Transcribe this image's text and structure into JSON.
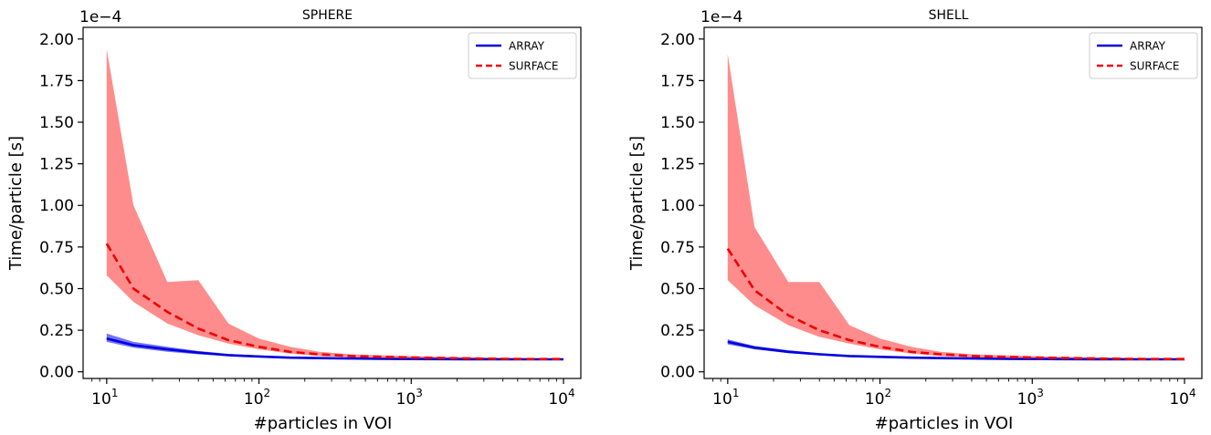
{
  "chart_data": [
    {
      "type": "line",
      "title": "SPHERE",
      "xlabel": "#particles in VOI",
      "ylabel": "Time/particle [s]",
      "xscale": "log",
      "xlim": [
        7,
        13000
      ],
      "ylim": [
        -0.04,
        2.07
      ],
      "y_multiplier": "1e−4",
      "x_ticks": [
        {
          "value": 10,
          "base": "10",
          "exp": "1"
        },
        {
          "value": 100,
          "base": "10",
          "exp": "2"
        },
        {
          "value": 1000,
          "base": "10",
          "exp": "3"
        },
        {
          "value": 10000,
          "base": "10",
          "exp": "4"
        }
      ],
      "y_ticks": [
        0.0,
        0.25,
        0.5,
        0.75,
        1.0,
        1.25,
        1.5,
        1.75,
        2.0
      ],
      "y_tick_labels": [
        "0.00",
        "0.25",
        "0.50",
        "0.75",
        "1.00",
        "1.25",
        "1.50",
        "1.75",
        "2.00"
      ],
      "legend_position": "top-right",
      "series": [
        {
          "name": "ARRAY",
          "color": "#0000dd",
          "dash": "solid",
          "x": [
            10,
            15,
            25,
            40,
            63,
            100,
            160,
            250,
            400,
            630,
            1000,
            1600,
            2500,
            4000,
            6300,
            10000
          ],
          "values": [
            0.2,
            0.16,
            0.135,
            0.115,
            0.1,
            0.092,
            0.085,
            0.082,
            0.08,
            0.078,
            0.077,
            0.076,
            0.075,
            0.075,
            0.075,
            0.075
          ],
          "band_upper": [
            0.23,
            0.18,
            0.15,
            0.125,
            0.108,
            0.098,
            0.09,
            0.086,
            0.083,
            0.081,
            0.08,
            0.079,
            0.078,
            0.078,
            0.078,
            0.078
          ],
          "band_lower": [
            0.18,
            0.145,
            0.12,
            0.105,
            0.094,
            0.087,
            0.081,
            0.078,
            0.076,
            0.075,
            0.074,
            0.073,
            0.073,
            0.073,
            0.073,
            0.073
          ],
          "band_color": "#4444ff"
        },
        {
          "name": "SURFACE",
          "color": "#ee0000",
          "dash": "dashed",
          "x": [
            10,
            15,
            25,
            40,
            63,
            100,
            160,
            250,
            400,
            630,
            1000,
            1600,
            2500,
            4000,
            6300,
            10000
          ],
          "values": [
            0.77,
            0.5,
            0.36,
            0.26,
            0.19,
            0.15,
            0.12,
            0.105,
            0.095,
            0.09,
            0.085,
            0.083,
            0.08,
            0.078,
            0.077,
            0.077
          ],
          "band_upper": [
            1.94,
            1.0,
            0.54,
            0.55,
            0.29,
            0.2,
            0.15,
            0.12,
            0.105,
            0.1,
            0.095,
            0.09,
            0.088,
            0.084,
            0.08,
            0.08
          ],
          "band_lower": [
            0.58,
            0.42,
            0.29,
            0.22,
            0.17,
            0.135,
            0.11,
            0.095,
            0.088,
            0.082,
            0.079,
            0.077,
            0.075,
            0.074,
            0.074,
            0.074
          ],
          "band_color": "#ff6666"
        }
      ]
    },
    {
      "type": "line",
      "title": "SHELL",
      "xlabel": "#particles in VOI",
      "ylabel": "Time/particle [s]",
      "xscale": "log",
      "xlim": [
        7,
        13000
      ],
      "ylim": [
        -0.04,
        2.07
      ],
      "y_multiplier": "1e−4",
      "x_ticks": [
        {
          "value": 10,
          "base": "10",
          "exp": "1"
        },
        {
          "value": 100,
          "base": "10",
          "exp": "2"
        },
        {
          "value": 1000,
          "base": "10",
          "exp": "3"
        },
        {
          "value": 10000,
          "base": "10",
          "exp": "4"
        }
      ],
      "y_ticks": [
        0.0,
        0.25,
        0.5,
        0.75,
        1.0,
        1.25,
        1.5,
        1.75,
        2.0
      ],
      "y_tick_labels": [
        "0.00",
        "0.25",
        "0.50",
        "0.75",
        "1.00",
        "1.25",
        "1.50",
        "1.75",
        "2.00"
      ],
      "legend_position": "top-right",
      "series": [
        {
          "name": "ARRAY",
          "color": "#0000dd",
          "dash": "solid",
          "x": [
            10,
            15,
            25,
            40,
            63,
            100,
            160,
            250,
            400,
            630,
            1000,
            1600,
            2500,
            4000,
            6300,
            10000
          ],
          "values": [
            0.18,
            0.145,
            0.12,
            0.105,
            0.095,
            0.09,
            0.085,
            0.082,
            0.08,
            0.078,
            0.077,
            0.076,
            0.075,
            0.075,
            0.075,
            0.075
          ],
          "band_upper": [
            0.195,
            0.155,
            0.13,
            0.112,
            0.1,
            0.094,
            0.088,
            0.085,
            0.083,
            0.081,
            0.08,
            0.079,
            0.078,
            0.078,
            0.078,
            0.078
          ],
          "band_lower": [
            0.165,
            0.135,
            0.112,
            0.099,
            0.09,
            0.086,
            0.082,
            0.079,
            0.077,
            0.075,
            0.074,
            0.073,
            0.073,
            0.073,
            0.073,
            0.073
          ],
          "band_color": "#4444ff"
        },
        {
          "name": "SURFACE",
          "color": "#ee0000",
          "dash": "dashed",
          "x": [
            10,
            15,
            25,
            40,
            63,
            100,
            160,
            250,
            400,
            630,
            1000,
            1600,
            2500,
            4000,
            6300,
            10000
          ],
          "values": [
            0.74,
            0.49,
            0.34,
            0.25,
            0.19,
            0.15,
            0.12,
            0.105,
            0.095,
            0.09,
            0.085,
            0.083,
            0.08,
            0.078,
            0.077,
            0.077
          ],
          "band_upper": [
            1.91,
            0.87,
            0.54,
            0.54,
            0.28,
            0.2,
            0.15,
            0.12,
            0.105,
            0.1,
            0.095,
            0.09,
            0.088,
            0.084,
            0.08,
            0.08
          ],
          "band_lower": [
            0.55,
            0.4,
            0.28,
            0.21,
            0.17,
            0.135,
            0.11,
            0.095,
            0.088,
            0.082,
            0.079,
            0.077,
            0.075,
            0.074,
            0.074,
            0.074
          ],
          "band_color": "#ff6666"
        }
      ]
    }
  ]
}
